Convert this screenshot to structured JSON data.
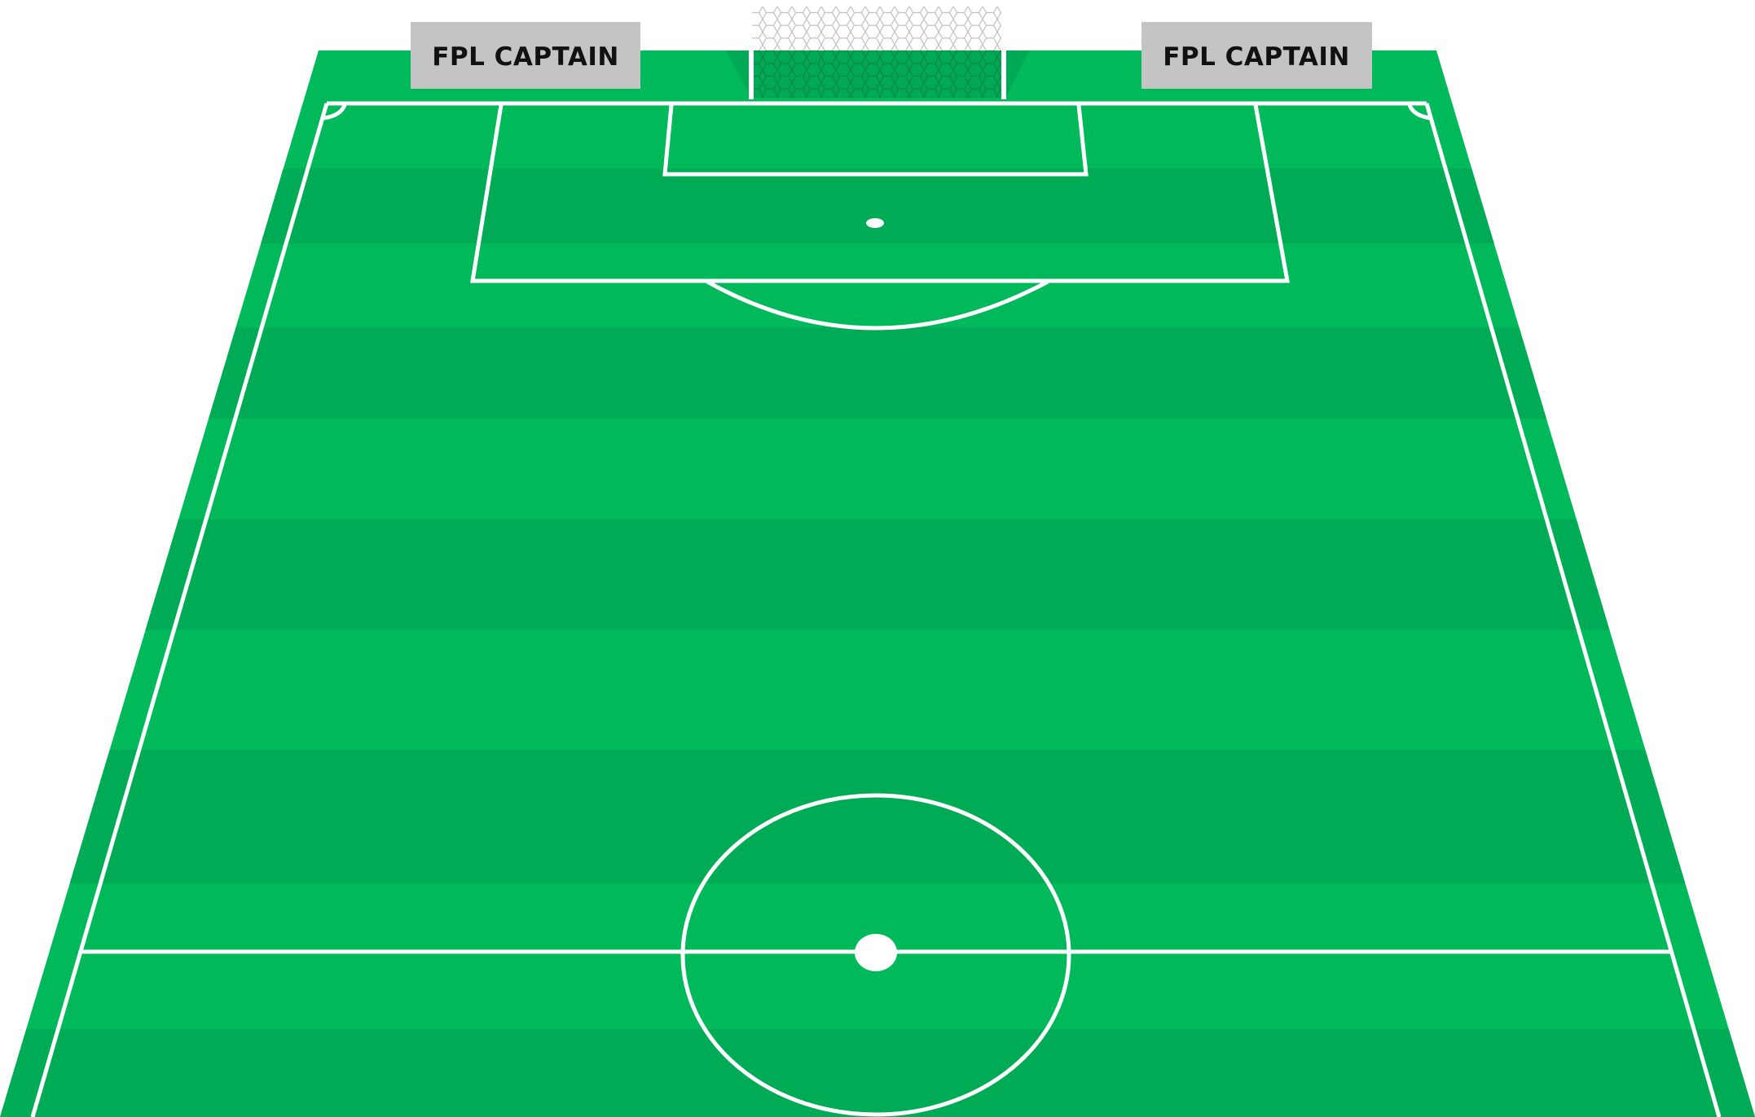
{
  "ad_boards": {
    "left": {
      "text": "FPL CAPTAIN"
    },
    "right": {
      "text": "FPL CAPTAIN"
    }
  },
  "colors": {
    "pitch_light": "#00b95a",
    "pitch_dark": "#00ab55",
    "lines": "#ffffff",
    "board": "#c4c4c4",
    "board_text": "#111111"
  }
}
